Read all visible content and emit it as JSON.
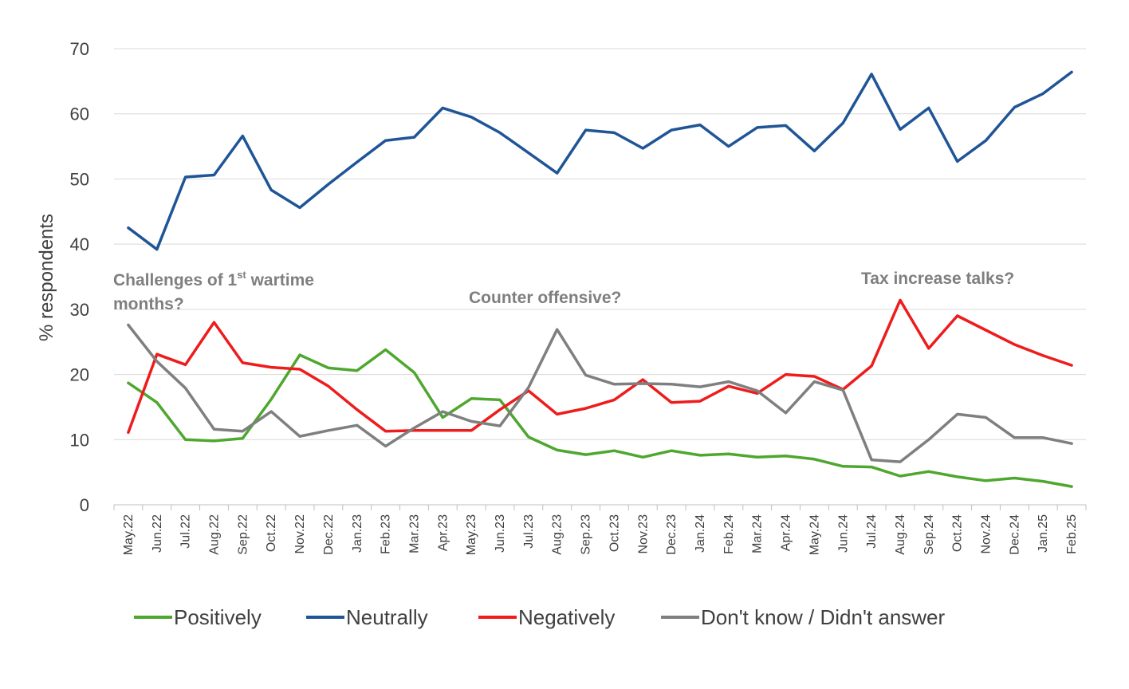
{
  "chart_data": {
    "type": "line",
    "ylabel": "% respondents",
    "xlabel": "",
    "ylim": [
      0,
      70
    ],
    "yticks": [
      0,
      10,
      20,
      30,
      40,
      50,
      60,
      70
    ],
    "grid": "horizontal",
    "legend_position": "bottom",
    "categories": [
      "May.22",
      "Jun.22",
      "Jul.22",
      "Aug.22",
      "Sep.22",
      "Oct.22",
      "Nov.22",
      "Dec.22",
      "Jan.23",
      "Feb.23",
      "Mar.23",
      "Apr.23",
      "May.23",
      "Jun.23",
      "Jul.23",
      "Aug.23",
      "Sep.23",
      "Oct.23",
      "Nov.23",
      "Dec.23",
      "Jan.24",
      "Feb.24",
      "Mar.24",
      "Apr.24",
      "May.24",
      "Jun.24",
      "Jul.24",
      "Aug.24",
      "Sep.24",
      "Oct.24",
      "Nov.24",
      "Dec.24",
      "Jan.25",
      "Feb.25"
    ],
    "series": [
      {
        "name": "Positively",
        "color": "#4ea72e",
        "values": [
          18.7,
          15.7,
          10.0,
          9.8,
          10.2,
          16.2,
          23.0,
          21.0,
          20.6,
          23.8,
          20.3,
          13.4,
          16.3,
          16.1,
          10.4,
          8.4,
          7.7,
          8.3,
          7.3,
          8.3,
          7.6,
          7.8,
          7.3,
          7.5,
          7.0,
          5.9,
          5.8,
          4.4,
          5.1,
          4.3,
          3.7,
          4.1,
          3.6,
          2.8
        ]
      },
      {
        "name": "Neutrally",
        "color": "#1f5597",
        "values": [
          42.5,
          39.2,
          50.3,
          50.6,
          56.6,
          48.3,
          45.6,
          49.2,
          52.6,
          55.9,
          56.4,
          60.9,
          59.5,
          57.1,
          54.0,
          50.9,
          57.5,
          57.1,
          54.7,
          57.5,
          58.3,
          55.0,
          57.9,
          58.2,
          54.3,
          58.6,
          66.1,
          57.6,
          60.9,
          52.7,
          55.9,
          61.0,
          63.1,
          66.4
        ]
      },
      {
        "name": "Negatively",
        "color": "#ee1c1c",
        "values": [
          11.1,
          23.1,
          21.5,
          28.0,
          21.8,
          21.1,
          20.8,
          18.2,
          14.6,
          11.3,
          11.4,
          11.4,
          11.4,
          14.6,
          17.5,
          13.9,
          14.8,
          16.1,
          19.2,
          15.7,
          15.9,
          18.2,
          17.1,
          20.0,
          19.7,
          17.7,
          21.3,
          31.4,
          24.0,
          29.0,
          26.8,
          24.6,
          22.9,
          21.4
        ]
      },
      {
        "name": "Don't know / Didn't answer",
        "color": "#7f7f7f",
        "values": [
          27.6,
          22.0,
          17.9,
          11.6,
          11.3,
          14.3,
          10.5,
          11.4,
          12.2,
          9.0,
          11.8,
          14.3,
          12.8,
          12.1,
          18.0,
          26.9,
          19.9,
          18.5,
          18.6,
          18.5,
          18.1,
          18.9,
          17.5,
          14.1,
          18.9,
          17.6,
          6.9,
          6.6,
          10.0,
          13.9,
          13.4,
          10.3,
          10.3,
          9.4
        ]
      }
    ],
    "annotations": [
      {
        "text": "Challenges of 1",
        "sup": "st",
        "text_after": " wartime",
        "line2": "months?"
      },
      {
        "text": "Counter offensive?"
      },
      {
        "text": "Tax increase talks?"
      }
    ]
  }
}
